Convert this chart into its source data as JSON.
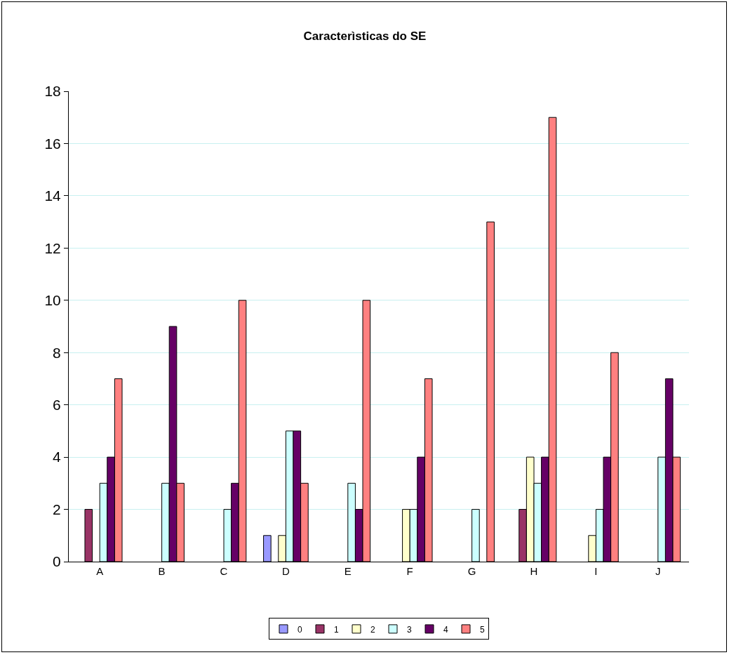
{
  "chart_data": {
    "type": "bar",
    "title": "Caracterìsticas do SE",
    "categories": [
      "A",
      "B",
      "C",
      "D",
      "E",
      "F",
      "G",
      "H",
      "I",
      "J"
    ],
    "series": [
      {
        "name": "0",
        "color": "#9999ff",
        "values": [
          null,
          null,
          null,
          1,
          null,
          null,
          null,
          null,
          null,
          null
        ]
      },
      {
        "name": "1",
        "color": "#993366",
        "values": [
          2,
          null,
          null,
          null,
          null,
          null,
          null,
          2,
          null,
          null
        ]
      },
      {
        "name": "2",
        "color": "#ffffcc",
        "values": [
          null,
          null,
          null,
          1,
          null,
          2,
          null,
          4,
          1,
          null
        ]
      },
      {
        "name": "3",
        "color": "#ccffff",
        "values": [
          3,
          3,
          2,
          5,
          3,
          2,
          2,
          3,
          2,
          4
        ]
      },
      {
        "name": "4",
        "color": "#660066",
        "values": [
          4,
          9,
          3,
          5,
          2,
          4,
          null,
          4,
          4,
          7
        ]
      },
      {
        "name": "5",
        "color": "#ff8080",
        "values": [
          7,
          3,
          10,
          3,
          10,
          7,
          13,
          17,
          8,
          4
        ]
      }
    ],
    "ylim": [
      0,
      18
    ],
    "yticks": [
      0,
      2,
      4,
      6,
      8,
      10,
      12,
      14,
      16,
      18
    ],
    "grid": "y",
    "legend": "bottom"
  }
}
